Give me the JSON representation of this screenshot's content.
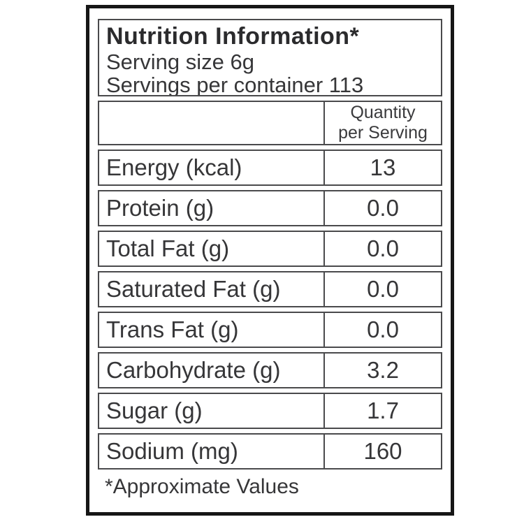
{
  "label": {
    "title": "Nutrition Information*",
    "serving_size": "Serving size 6g",
    "servings_per_container": "Servings per container 113",
    "column_header": {
      "line1": "Quantity",
      "line2": "per Serving"
    },
    "rows": [
      {
        "name": "Energy (kcal)",
        "value": "13"
      },
      {
        "name": "Protein (g)",
        "value": "0.0"
      },
      {
        "name": "Total Fat (g)",
        "value": "0.0"
      },
      {
        "name": "Saturated Fat (g)",
        "value": "0.0"
      },
      {
        "name": "Trans Fat (g)",
        "value": "0.0"
      },
      {
        "name": "Carbohydrate (g)",
        "value": "3.2"
      },
      {
        "name": "Sugar (g)",
        "value": "1.7"
      },
      {
        "name": "Sodium (mg)",
        "value": "160"
      }
    ],
    "footnote": "*Approximate Values",
    "colors": {
      "background": "#ffffff",
      "frame_border": "#161616",
      "cell_border": "#4a4a4c",
      "text": "#363638"
    }
  }
}
